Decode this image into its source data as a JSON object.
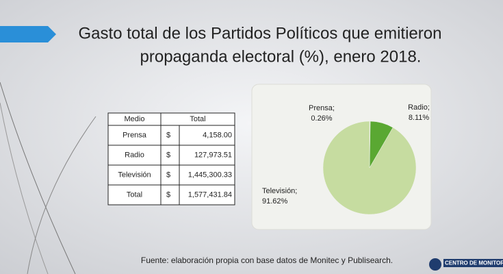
{
  "title_lines": [
    "Gasto total de los Partidos Políticos que emitieron",
    "propaganda electoral (%), enero 2018."
  ],
  "table": {
    "header": [
      "Medio",
      "Total"
    ],
    "rows": [
      [
        "Prensa",
        "$",
        "4,158.00"
      ],
      [
        "Radio",
        "$",
        "127,973.51"
      ],
      [
        "Televisión",
        "$",
        "1,445,300.33"
      ],
      [
        "Total",
        "$",
        "1,577,431.84"
      ]
    ]
  },
  "chart_data": {
    "type": "pie",
    "categories": [
      "Prensa;",
      "Radio;",
      "Televisión;"
    ],
    "values": [
      0.26,
      8.11,
      91.62
    ],
    "value_labels": [
      "0.26%",
      "8.11%",
      "91.62%"
    ],
    "colors": [
      "#e3edcf",
      "#5aa832",
      "#c6dca0"
    ]
  },
  "source": "Fuente: elaboración propia con base datos de Monitec y Publisearch.",
  "logo": "CENTRO DE MONITORE"
}
